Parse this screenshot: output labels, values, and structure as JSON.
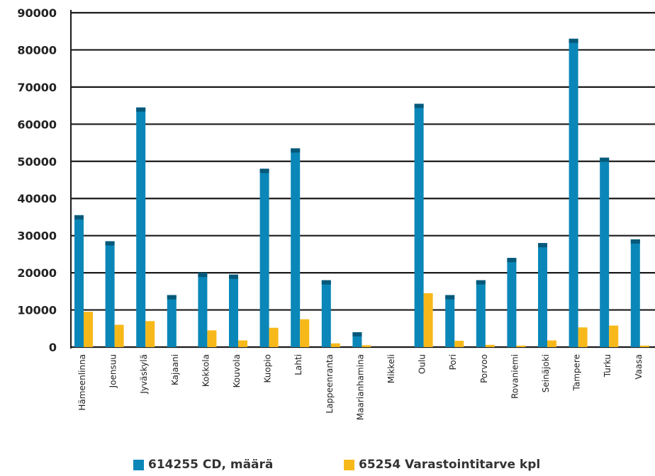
{
  "colors": {
    "series1": "#0a87b8",
    "series1_dark": "#06597a",
    "series2": "#f7b91a",
    "grid": "#1a1a1a",
    "text": "#222222"
  },
  "chart_data": {
    "type": "bar",
    "title": "",
    "xlabel": "",
    "ylabel": "",
    "ylim": [
      0,
      90000
    ],
    "yticks": [
      0,
      10000,
      20000,
      30000,
      40000,
      50000,
      60000,
      70000,
      80000,
      90000
    ],
    "ytick_labels": [
      "0",
      "10000",
      "20000",
      "30000",
      "40000",
      "50000",
      "60000",
      "70000",
      "80000",
      "90000"
    ],
    "grid": true,
    "legend_position": "bottom",
    "categories": [
      "Hämeenlinna",
      "Joensuu",
      "Jyväskylä",
      "Kajaani",
      "Kokkola",
      "Kouvola",
      "Kuopio",
      "Lahti",
      "Lappeenranta",
      "Maarianhamina",
      "Mikkeli",
      "Oulu",
      "Pori",
      "Porvoo",
      "Rovaniemi",
      "Seinäjoki",
      "Tampere",
      "Turku",
      "Vaasa"
    ],
    "series": [
      {
        "name": "614255 CD, määrä",
        "values": [
          35500,
          28500,
          64500,
          14000,
          20000,
          19500,
          48000,
          53500,
          18000,
          4000,
          0,
          65500,
          14000,
          18000,
          24000,
          28000,
          83000,
          51000,
          29000
        ]
      },
      {
        "name": "65254 Varastointitarve kpl",
        "values": [
          9500,
          6000,
          7000,
          0,
          4500,
          1800,
          5200,
          7500,
          1000,
          500,
          0,
          14500,
          1700,
          600,
          400,
          1800,
          5300,
          5800,
          400
        ]
      }
    ]
  }
}
